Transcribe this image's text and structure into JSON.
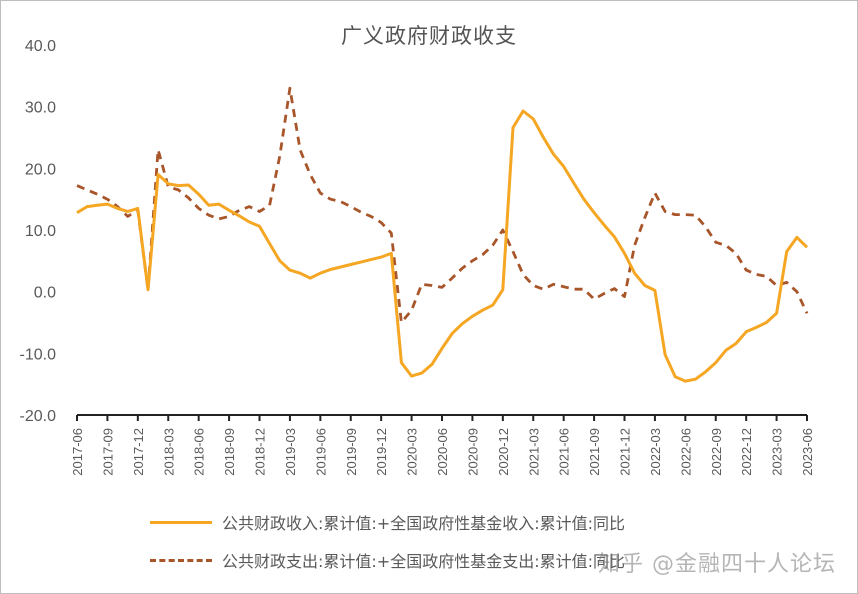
{
  "chart_data": {
    "type": "line",
    "title": "广义政府财政收支",
    "xlabel": "",
    "ylabel": "",
    "ylim": [
      -20,
      40
    ],
    "yticks": [
      "40.0",
      "30.0",
      "20.0",
      "10.0",
      "0.0",
      "-10.0",
      "-20.0"
    ],
    "grid": false,
    "legend_position": "bottom",
    "xtick_labels": [
      "2017-06",
      "2017-09",
      "2017-12",
      "2018-03",
      "2018-06",
      "2018-09",
      "2018-12",
      "2019-03",
      "2019-06",
      "2019-09",
      "2019-12",
      "2020-03",
      "2020-06",
      "2020-09",
      "2020-12",
      "2021-03",
      "2021-06",
      "2021-09",
      "2021-12",
      "2022-03",
      "2022-06",
      "2022-09",
      "2022-12",
      "2023-03",
      "2023-06"
    ],
    "x": [
      "2017-06",
      "2017-07",
      "2017-08",
      "2017-09",
      "2017-10",
      "2017-11",
      "2017-12",
      "2018-01",
      "2018-02",
      "2018-03",
      "2018-04",
      "2018-05",
      "2018-06",
      "2018-07",
      "2018-08",
      "2018-09",
      "2018-10",
      "2018-11",
      "2018-12",
      "2019-01",
      "2019-02",
      "2019-03",
      "2019-04",
      "2019-05",
      "2019-06",
      "2019-07",
      "2019-08",
      "2019-09",
      "2019-10",
      "2019-11",
      "2019-12",
      "2020-01",
      "2020-02",
      "2020-03",
      "2020-04",
      "2020-05",
      "2020-06",
      "2020-07",
      "2020-08",
      "2020-09",
      "2020-10",
      "2020-11",
      "2020-12",
      "2021-01",
      "2021-02",
      "2021-03",
      "2021-04",
      "2021-05",
      "2021-06",
      "2021-07",
      "2021-08",
      "2021-09",
      "2021-10",
      "2021-11",
      "2021-12",
      "2022-01",
      "2022-02",
      "2022-03",
      "2022-04",
      "2022-05",
      "2022-06",
      "2022-07",
      "2022-08",
      "2022-09",
      "2022-10",
      "2022-11",
      "2022-12",
      "2023-01",
      "2023-02",
      "2023-03",
      "2023-04",
      "2023-05",
      "2023-06"
    ],
    "series": [
      {
        "name": "公共财政收入:累计值:+全国政府性基金收入:累计值:同比",
        "style": "solid",
        "color": "#F5A623",
        "values": [
          12.8,
          13.8,
          14.0,
          14.2,
          13.5,
          13.0,
          13.5,
          0.3,
          19.0,
          17.5,
          17.2,
          17.3,
          15.8,
          14.0,
          14.2,
          13.2,
          12.3,
          11.3,
          10.6,
          7.8,
          5.0,
          3.5,
          3.0,
          2.2,
          3.0,
          3.6,
          4.0,
          4.4,
          4.8,
          5.2,
          5.6,
          6.2,
          -11.5,
          -13.7,
          -13.2,
          -11.8,
          -9.2,
          -6.8,
          -5.2,
          -4.0,
          -3.0,
          -2.2,
          0.3,
          26.6,
          29.3,
          28.0,
          25.0,
          22.3,
          20.3,
          17.6,
          15.0,
          12.8,
          10.8,
          8.9,
          6.2,
          3.0,
          1.0,
          0.2,
          -10.2,
          -13.8,
          -14.5,
          -14.2,
          -13.0,
          -11.5,
          -9.5,
          -8.4,
          -6.5,
          -5.8,
          -5.0,
          -3.5,
          6.5,
          8.8,
          7.2
        ]
      },
      {
        "name": "公共财政支出:累计值:+全国政府性基金支出:累计值:同比",
        "style": "dashed",
        "color": "#A8552A",
        "values": [
          17.2,
          16.5,
          15.8,
          15.0,
          13.8,
          12.2,
          13.2,
          0.3,
          23.0,
          17.0,
          16.5,
          15.2,
          13.5,
          12.4,
          11.8,
          12.2,
          13.2,
          13.8,
          13.0,
          14.0,
          22.0,
          33.0,
          23.0,
          19.0,
          16.0,
          15.0,
          14.6,
          13.8,
          12.9,
          12.2,
          11.2,
          9.5,
          -5.0,
          -3.0,
          1.2,
          1.0,
          0.7,
          2.2,
          3.8,
          5.0,
          6.0,
          7.5,
          10.0,
          6.5,
          2.8,
          1.0,
          0.4,
          1.2,
          0.8,
          0.4,
          0.4,
          -1.2,
          -0.3,
          0.5,
          -0.8,
          7.5,
          12.0,
          16.0,
          13.0,
          12.5,
          12.5,
          12.4,
          10.5,
          8.0,
          7.5,
          6.2,
          3.5,
          2.8,
          2.5,
          1.0,
          1.5,
          0.0,
          -3.5
        ]
      }
    ]
  },
  "legend": {
    "items": [
      {
        "label": "公共财政收入:累计值:+全国政府性基金收入:累计值:同比",
        "style": "solid",
        "color": "#F5A623"
      },
      {
        "label": "公共财政支出:累计值:+全国政府性基金支出:累计值:同比",
        "style": "dashed",
        "color": "#A8552A"
      }
    ]
  },
  "watermark": "知乎 @金融四十人论坛"
}
